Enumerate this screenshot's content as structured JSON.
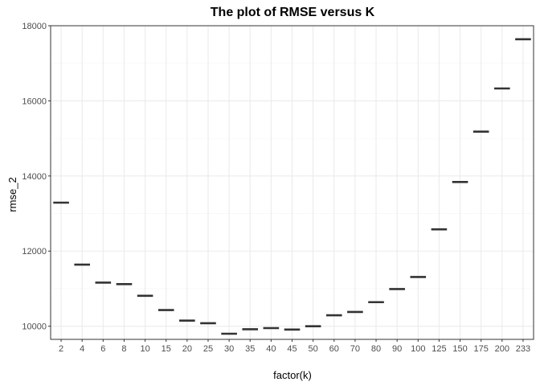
{
  "chart_data": {
    "type": "boxplot",
    "title": "The plot of RMSE versus K",
    "xlabel": "factor(k)",
    "ylabel": "rmse_2",
    "categories": [
      "2",
      "4",
      "6",
      "8",
      "10",
      "15",
      "20",
      "25",
      "30",
      "35",
      "40",
      "45",
      "50",
      "60",
      "70",
      "80",
      "90",
      "100",
      "125",
      "150",
      "175",
      "200",
      "233"
    ],
    "values": [
      13290,
      11640,
      11160,
      11120,
      10810,
      10430,
      10150,
      10080,
      9800,
      9920,
      9950,
      9910,
      10000,
      10290,
      10380,
      10640,
      10990,
      11310,
      12580,
      13840,
      15180,
      16330,
      17640
    ],
    "ylim": [
      9650,
      18000
    ],
    "yticks": [
      "10000",
      "12000",
      "14000",
      "16000",
      "18000"
    ],
    "ytick_values": [
      10000,
      12000,
      14000,
      16000,
      18000
    ],
    "grid": true,
    "legend": "none",
    "colors": {
      "line": "#333333",
      "grid_major": "#ebebeb",
      "grid_minor": "#f5f5f5",
      "frame": "#333333"
    }
  }
}
